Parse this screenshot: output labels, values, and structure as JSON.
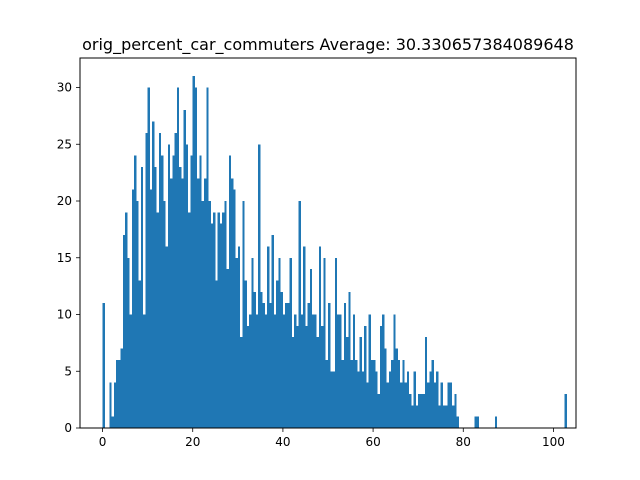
{
  "chart_data": {
    "type": "bar",
    "title": "orig_percent_car_commuters  Average: 30.330657384089648",
    "xlabel": "",
    "ylabel": "",
    "xlim": [
      -5,
      105
    ],
    "ylim": [
      0,
      32.6
    ],
    "x_ticks": [
      0,
      20,
      40,
      60,
      80,
      100
    ],
    "x_tick_labels": [
      "0",
      "20",
      "40",
      "60",
      "80",
      "100"
    ],
    "y_ticks": [
      0,
      5,
      10,
      15,
      20,
      25,
      30
    ],
    "y_tick_labels": [
      "0",
      "5",
      "10",
      "15",
      "20",
      "25",
      "30"
    ],
    "grid": false,
    "legend": "none",
    "bin_width": 0.5,
    "bin_start": 0,
    "bar_color": "#1f77b4",
    "values": [
      11,
      0,
      0,
      4,
      1,
      4,
      6,
      6,
      7,
      17,
      19,
      15,
      10,
      21,
      24,
      20,
      13,
      23,
      10,
      26,
      30,
      21,
      27,
      23,
      19,
      26,
      24,
      20,
      16,
      25,
      22,
      24,
      26,
      30,
      23,
      22,
      28,
      25,
      19,
      24,
      31,
      30,
      22,
      24,
      20,
      22,
      30,
      20,
      18,
      19,
      13,
      19,
      18,
      19,
      20,
      14,
      24,
      22,
      21,
      15,
      16,
      8,
      20,
      13,
      9,
      10,
      15,
      12,
      10,
      25,
      12,
      11,
      10,
      16,
      11,
      17,
      10,
      13,
      15,
      12,
      10,
      11,
      11,
      15,
      8,
      10,
      9,
      20,
      10,
      16,
      9,
      11,
      14,
      10,
      10,
      8,
      16,
      9,
      15,
      6,
      11,
      5,
      5,
      15,
      10,
      10,
      6,
      11,
      8,
      12,
      6,
      10,
      6,
      5,
      8,
      5,
      9,
      4,
      10,
      6,
      6,
      5,
      3,
      9,
      10,
      7,
      4,
      5,
      6,
      10,
      7,
      6,
      4,
      6,
      4,
      5,
      3,
      2,
      5,
      2,
      3,
      3,
      3,
      8,
      4,
      5,
      6,
      4,
      5,
      2,
      4,
      2,
      2,
      4,
      4,
      2,
      3,
      1,
      0,
      0,
      0,
      0,
      0,
      0,
      0,
      1,
      1,
      0,
      0,
      0,
      0,
      0,
      0,
      0,
      1,
      0,
      0,
      0,
      0,
      0,
      0,
      0,
      0,
      0,
      0,
      0,
      0,
      0,
      0,
      0,
      0,
      0,
      0,
      0,
      0,
      0,
      0,
      0,
      0,
      0,
      0,
      0,
      0,
      0,
      0,
      3
    ]
  }
}
